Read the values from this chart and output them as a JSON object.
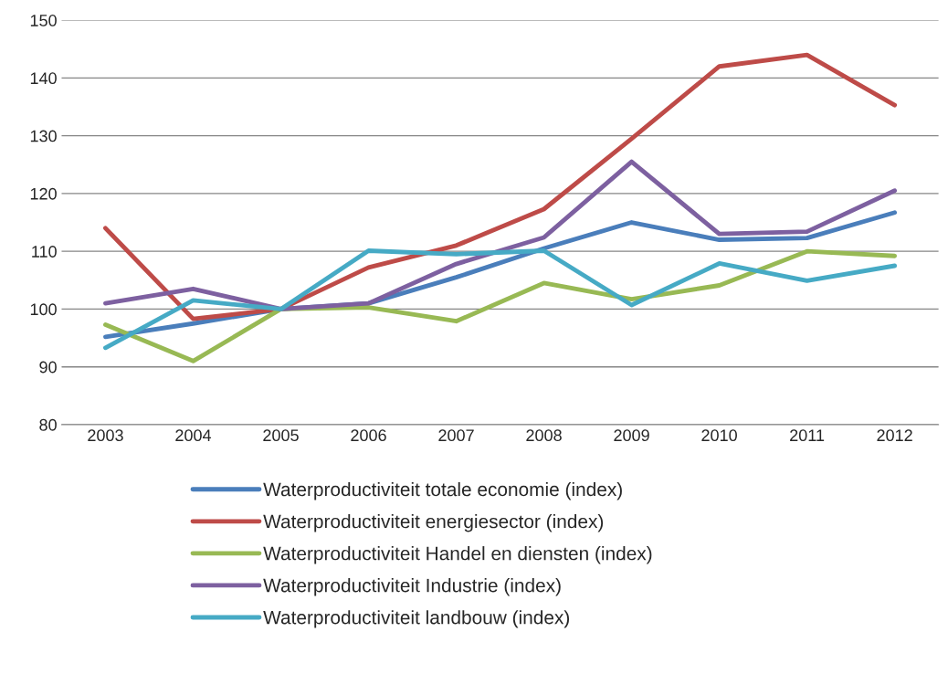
{
  "chart_data": {
    "type": "line",
    "categories": [
      "2003",
      "2004",
      "2005",
      "2006",
      "2007",
      "2008",
      "2009",
      "2010",
      "2011",
      "2012"
    ],
    "series": [
      {
        "name": "Waterproductiviteit totale economie (index)",
        "color": "#4a7ebb",
        "values": [
          95.2,
          97.5,
          100,
          101,
          105.5,
          110.5,
          115,
          112,
          112.3,
          116.7
        ]
      },
      {
        "name": "Waterproductiviteit energiesector (index)",
        "color": "#be4b48",
        "values": [
          114,
          98.3,
          100,
          107.2,
          111,
          117.3,
          129.5,
          142,
          144,
          135.3
        ]
      },
      {
        "name": "Waterproductiviteit Handel en diensten (index)",
        "color": "#98b954",
        "values": [
          97.3,
          91,
          100,
          100.3,
          97.9,
          104.5,
          101.7,
          104.1,
          110,
          109.2
        ]
      },
      {
        "name": "Waterproductiviteit Industrie (index)",
        "color": "#7d60a0",
        "values": [
          101,
          103.5,
          100,
          101,
          107.8,
          112.4,
          125.5,
          113,
          113.4,
          120.5
        ]
      },
      {
        "name": "Waterproductiviteit landbouw (index)",
        "color": "#46aac5",
        "values": [
          93.3,
          101.5,
          100,
          110.1,
          109.5,
          110.1,
          100.7,
          107.9,
          104.9,
          107.5
        ]
      }
    ],
    "ylim": [
      80,
      150
    ],
    "yticks": [
      80,
      90,
      100,
      110,
      120,
      130,
      140,
      150
    ],
    "grid": "y",
    "legend": "bottom",
    "marker": "none",
    "line_style": "solid"
  }
}
